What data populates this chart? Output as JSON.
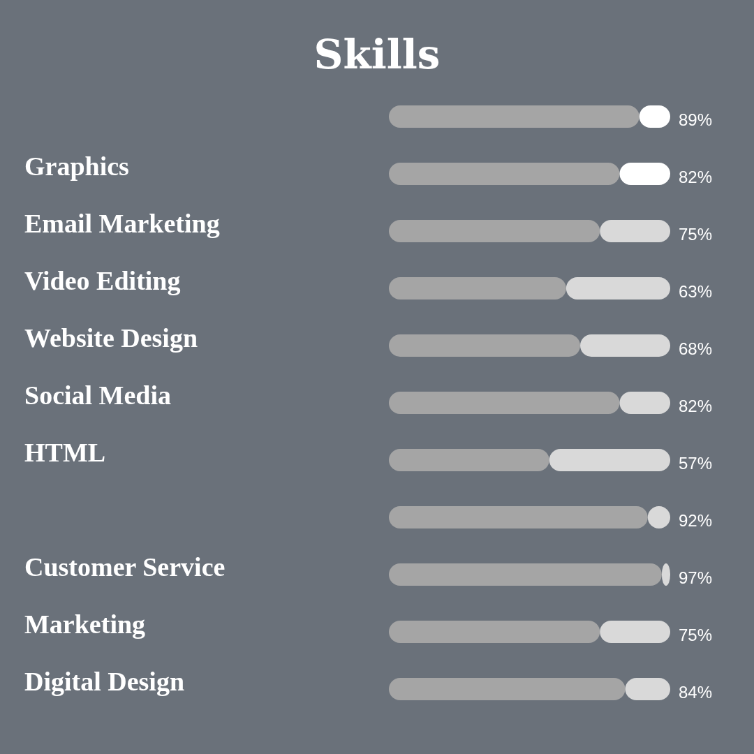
{
  "chart_data": {
    "type": "bar",
    "orientation": "horizontal",
    "stacked": true,
    "title": "Skills",
    "categories": [
      null,
      "Graphics",
      "Email Marketing",
      "Video Editing",
      "Website Design",
      "Social Media",
      "HTML",
      null,
      "Customer Service",
      "Marketing",
      "Digital Design"
    ],
    "series": [
      {
        "color": "#a5a5a5",
        "values": [
          89,
          82,
          75,
          63,
          68,
          82,
          57,
          92,
          97,
          75,
          84
        ],
        "value_labels": [
          "89%",
          "82%",
          "75%",
          "63%",
          "68%",
          "82%",
          "57%",
          "92%",
          "97%",
          "75%",
          "84%"
        ]
      },
      {
        "colors": [
          "#ffffff",
          "#ffffff",
          "#d9d9d9",
          "#d9d9d9",
          "#d9d9d9",
          "#d9d9d9",
          "#d9d9d9",
          "#d9d9d9",
          "#d9d9d9",
          "#d9d9d9",
          "#d9d9d9"
        ],
        "values": [
          11,
          18,
          25,
          37,
          32,
          18,
          43,
          8,
          3,
          25,
          16
        ]
      }
    ],
    "xlim": [
      0,
      100
    ],
    "tick_labels": "y"
  }
}
